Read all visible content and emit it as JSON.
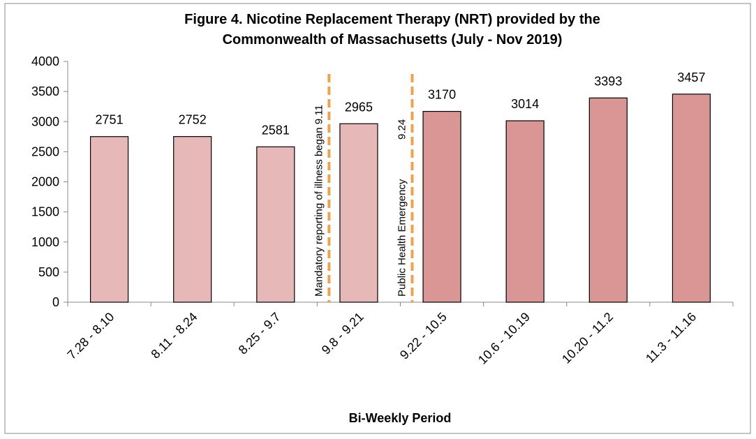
{
  "chart_data": {
    "type": "bar",
    "title": [
      "Figure 4. Nicotine Replacement Therapy (NRT) provided by the",
      "Commonwealth of Massachusetts (July - Nov 2019)"
    ],
    "x_label": "Bi-Weekly Period",
    "categories": [
      "7.28 - 8.10",
      "8.11 - 8.24",
      "8.25 - 9.7",
      "9.8 - 9.21",
      "9.22 - 10.5",
      "10.6 - 10.19",
      "10.20 - 11.2",
      "11.3 - 11.16"
    ],
    "values": [
      2751,
      2752,
      2581,
      2965,
      3170,
      3014,
      3393,
      3457
    ],
    "colors": [
      "#e6b8b7",
      "#e6b8b7",
      "#e6b8b7",
      "#e6b8b7",
      "#da9694",
      "#da9694",
      "#da9694",
      "#da9694"
    ],
    "ylim": [
      0,
      4000
    ],
    "yticks": [
      0,
      500,
      1000,
      1500,
      2000,
      2500,
      3000,
      3500,
      4000
    ],
    "annotations": [
      {
        "text": "Mandatory reporting of illness began 9.11"
      },
      {
        "text": "Public Health Emergency",
        "date": "9.24"
      }
    ],
    "annotation_color": "#f4a04a"
  }
}
